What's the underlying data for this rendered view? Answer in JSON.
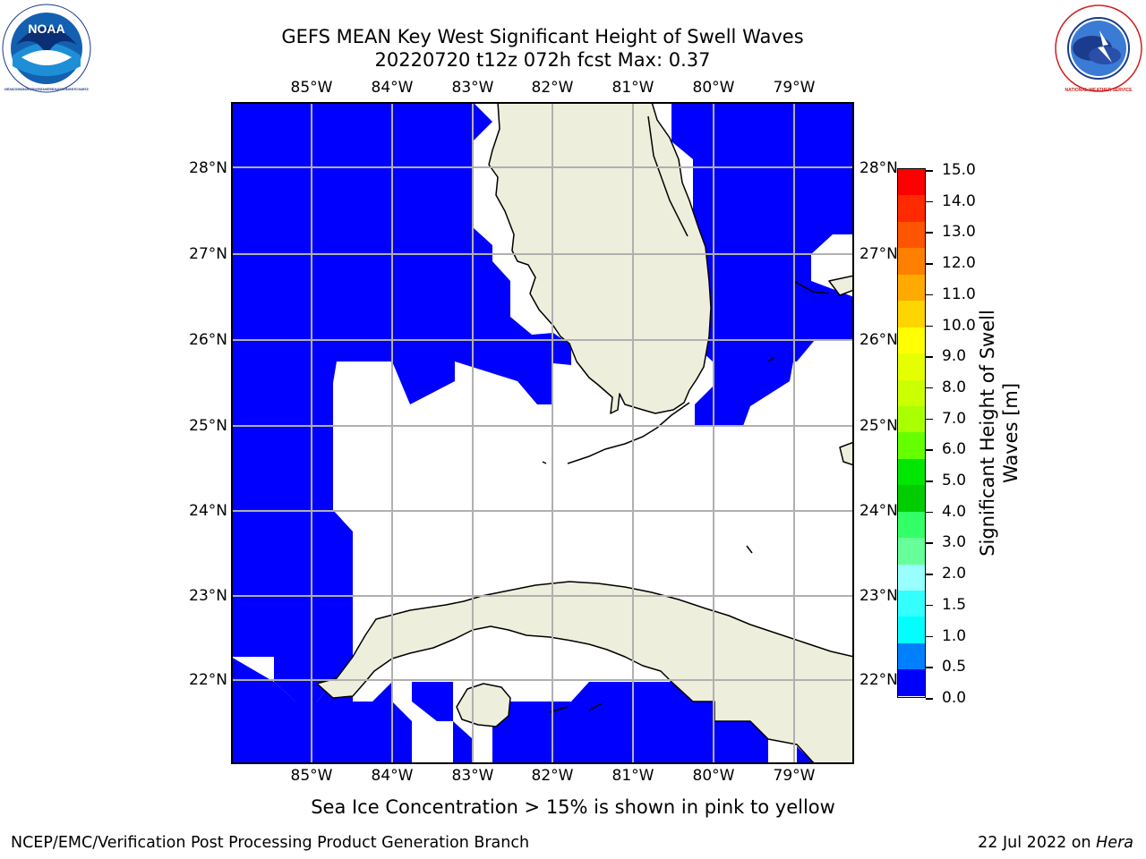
{
  "header": {
    "title_line1": "GEFS MEAN Key West Significant Height of Swell Waves",
    "title_line2": "20220720 t12z 072h fcst   Max: 0.37"
  },
  "logos": {
    "left": "NOAA",
    "left_ring_text": "NATIONAL OCEANIC AND ATMOSPHERIC ADMINISTRATION · U.S. DEPARTMENT OF COMMERCE",
    "right_ring_text": "NATIONAL WEATHER SERVICE"
  },
  "map": {
    "lon_ticks": [
      "85°W",
      "84°W",
      "83°W",
      "82°W",
      "81°W",
      "80°W",
      "79°W"
    ],
    "lat_ticks": [
      "28°N",
      "27°N",
      "26°N",
      "25°N",
      "24°N",
      "23°N",
      "22°N"
    ],
    "colors": {
      "land": "#eeeedc",
      "swell_low": "#0000ff",
      "grid": "#b0b0b0",
      "coast": "#000000"
    }
  },
  "colorbar": {
    "label_line1": "Significant Height of Swell",
    "label_line2": "Waves [m]",
    "ticks": [
      "15.0",
      "14.0",
      "13.0",
      "12.0",
      "11.0",
      "10.0",
      "9.0",
      "8.0",
      "7.0",
      "6.0",
      "5.0",
      "4.0",
      "3.0",
      "2.0",
      "1.5",
      "1.0",
      "0.5",
      "0.0"
    ],
    "colors": [
      "#ff0000",
      "#ff2a00",
      "#ff5500",
      "#ff8000",
      "#ffaa00",
      "#ffd500",
      "#ffff00",
      "#e6ff00",
      "#ccff00",
      "#aaff00",
      "#66ff00",
      "#00e600",
      "#00cc00",
      "#33ff66",
      "#66ff99",
      "#99ffff",
      "#33ffff",
      "#00ffff",
      "#0080ff",
      "#0000ff"
    ]
  },
  "footer": {
    "note": "Sea Ice Concentration > 15% is shown in pink to yellow",
    "left": "NCEP/EMC/Verification Post Processing Product Generation Branch",
    "right_date": "22 Jul 2022 on ",
    "right_host": "Hera"
  }
}
